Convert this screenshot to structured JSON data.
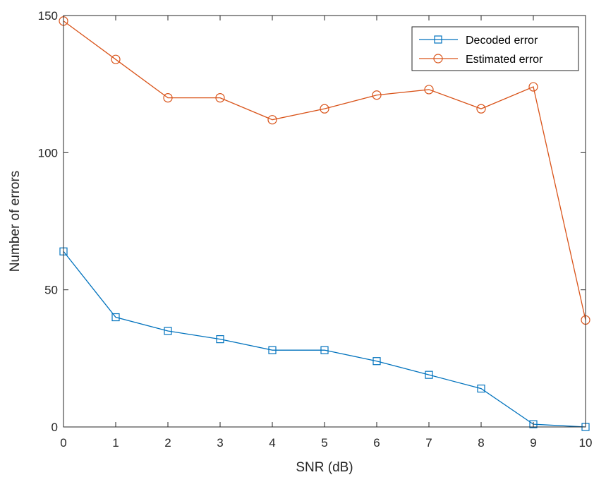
{
  "chart_data": {
    "type": "line",
    "title": "",
    "xlabel": "SNR (dB)",
    "ylabel": "Number of errors",
    "xlim": [
      0,
      10
    ],
    "ylim": [
      0,
      150
    ],
    "x_ticks": [
      0,
      1,
      2,
      3,
      4,
      5,
      6,
      7,
      8,
      9,
      10
    ],
    "y_ticks": [
      0,
      50,
      100,
      150
    ],
    "grid": false,
    "legend_position": "top-right",
    "x": [
      0,
      1,
      2,
      3,
      4,
      5,
      6,
      7,
      8,
      9,
      10
    ],
    "series": [
      {
        "name": "Decoded error",
        "color": "#0072BD",
        "marker": "square",
        "values": [
          64,
          40,
          35,
          32,
          28,
          28,
          24,
          19,
          14,
          1,
          0
        ]
      },
      {
        "name": "Estimated error",
        "color": "#D95319",
        "marker": "circle",
        "values": [
          148,
          134,
          120,
          120,
          112,
          116,
          121,
          123,
          116,
          124,
          39
        ]
      }
    ]
  }
}
